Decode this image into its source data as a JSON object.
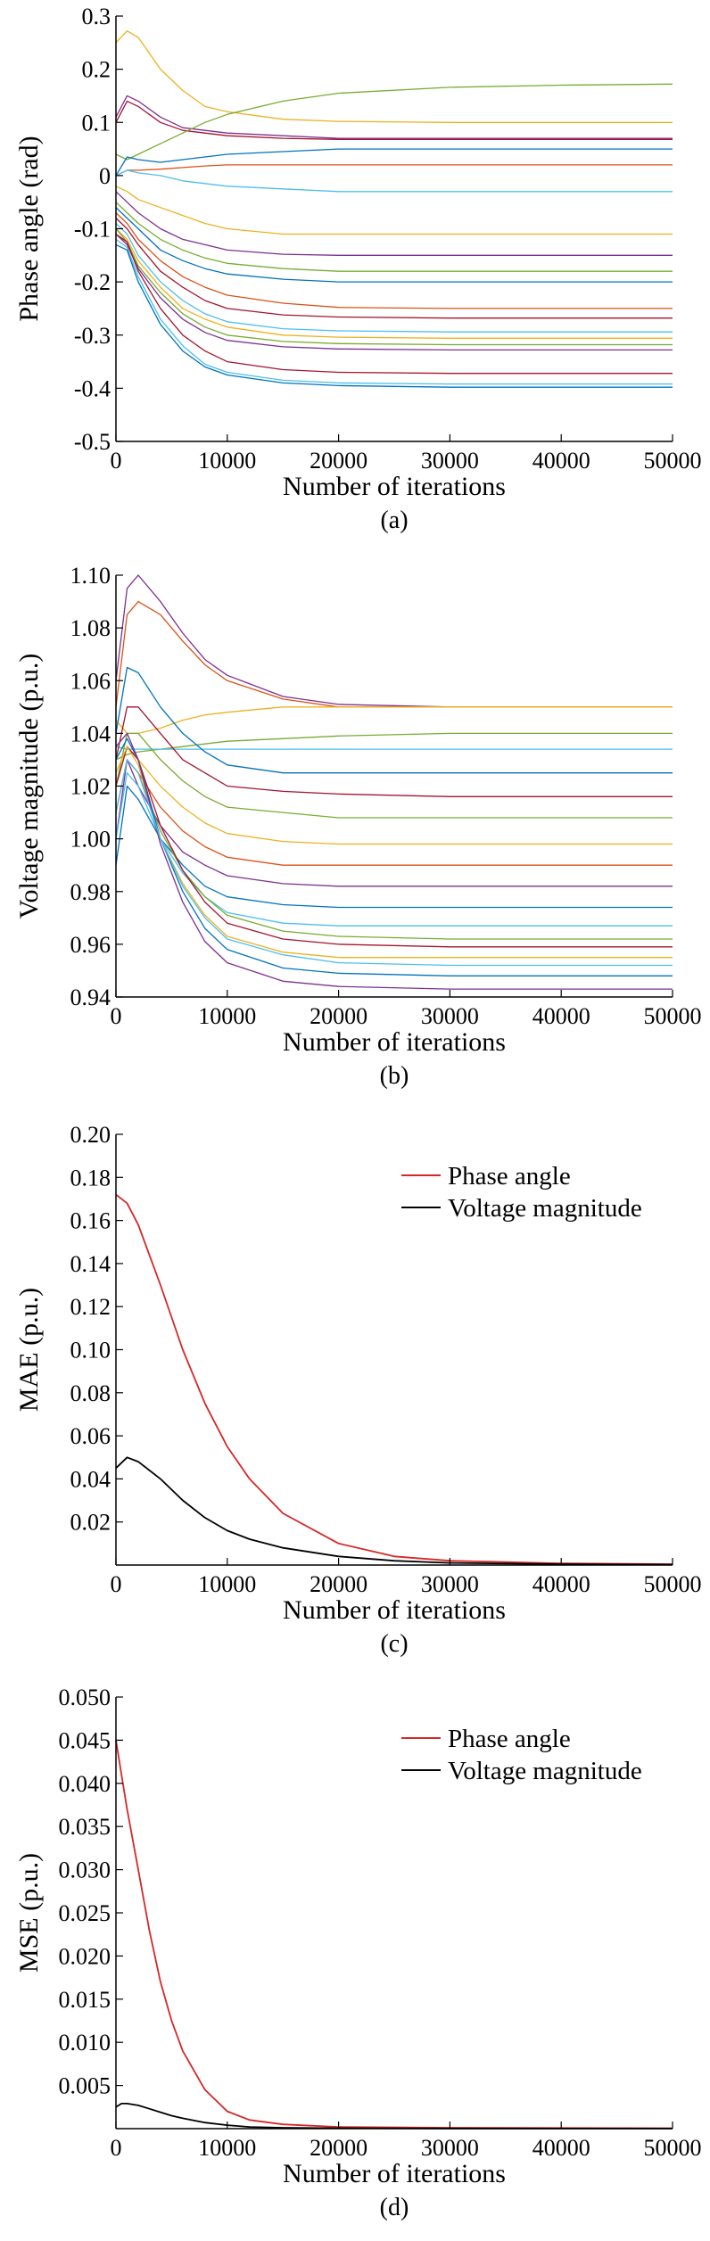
{
  "chart_data": [
    {
      "id": "a",
      "type": "line",
      "caption": "(a)",
      "xlabel": "Number of iterations",
      "ylabel": "Phase angle (rad)",
      "xlim": [
        0,
        50000
      ],
      "ylim": [
        -0.5,
        0.3
      ],
      "xticks": [
        0,
        10000,
        20000,
        30000,
        40000,
        50000
      ],
      "xtick_labels": [
        "0",
        "10000",
        "20000",
        "30000",
        "40000",
        "50000"
      ],
      "yticks": [
        -0.5,
        -0.4,
        -0.3,
        -0.2,
        -0.1,
        0,
        0.1,
        0.2,
        0.3
      ],
      "ytick_labels": [
        "-0.5",
        "-0.4",
        "-0.3",
        "-0.2",
        "-0.1",
        "0",
        "0.1",
        "0.2",
        "0.3"
      ],
      "grid": false,
      "x": [
        0,
        1000,
        2000,
        4000,
        6000,
        8000,
        10000,
        15000,
        20000,
        30000,
        40000,
        50000
      ],
      "series": [
        {
          "color": "#EDB120",
          "values": [
            0.25,
            0.272,
            0.26,
            0.2,
            0.16,
            0.13,
            0.12,
            0.106,
            0.102,
            0.1,
            0.1,
            0.1
          ]
        },
        {
          "color": "#7E2F8E",
          "values": [
            0.11,
            0.15,
            0.14,
            0.11,
            0.09,
            0.085,
            0.08,
            0.075,
            0.07,
            0.07,
            0.07,
            0.07
          ]
        },
        {
          "color": "#A2142F",
          "values": [
            0.1,
            0.14,
            0.13,
            0.1,
            0.085,
            0.08,
            0.075,
            0.07,
            0.068,
            0.068,
            0.068,
            0.068
          ]
        },
        {
          "color": "#77AC30",
          "values": [
            0.04,
            0.03,
            0.04,
            0.06,
            0.08,
            0.1,
            0.115,
            0.14,
            0.155,
            0.166,
            0.17,
            0.172
          ]
        },
        {
          "color": "#0072BD",
          "values": [
            0.0,
            0.035,
            0.03,
            0.025,
            0.03,
            0.035,
            0.04,
            0.045,
            0.05,
            0.05,
            0.05,
            0.05
          ]
        },
        {
          "color": "#D95319",
          "values": [
            0.0,
            0.01,
            0.01,
            0.012,
            0.015,
            0.018,
            0.02,
            0.02,
            0.02,
            0.02,
            0.02,
            0.02
          ]
        },
        {
          "color": "#4DBEEE",
          "values": [
            0.0,
            0.01,
            0.005,
            0.0,
            -0.01,
            -0.015,
            -0.02,
            -0.025,
            -0.03,
            -0.03,
            -0.03,
            -0.03
          ]
        },
        {
          "color": "#EDB120",
          "values": [
            -0.02,
            -0.03,
            -0.045,
            -0.06,
            -0.075,
            -0.09,
            -0.1,
            -0.11,
            -0.11,
            -0.11,
            -0.11,
            -0.11
          ]
        },
        {
          "color": "#7E2F8E",
          "values": [
            -0.03,
            -0.05,
            -0.07,
            -0.1,
            -0.12,
            -0.13,
            -0.14,
            -0.148,
            -0.15,
            -0.15,
            -0.15,
            -0.15
          ]
        },
        {
          "color": "#77AC30",
          "values": [
            -0.05,
            -0.07,
            -0.09,
            -0.12,
            -0.14,
            -0.155,
            -0.165,
            -0.175,
            -0.18,
            -0.18,
            -0.18,
            -0.18
          ]
        },
        {
          "color": "#0072BD",
          "values": [
            -0.06,
            -0.08,
            -0.1,
            -0.14,
            -0.16,
            -0.175,
            -0.185,
            -0.195,
            -0.2,
            -0.2,
            -0.2,
            -0.2
          ]
        },
        {
          "color": "#D95319",
          "values": [
            -0.07,
            -0.09,
            -0.12,
            -0.16,
            -0.19,
            -0.21,
            -0.225,
            -0.24,
            -0.248,
            -0.25,
            -0.25,
            -0.25
          ]
        },
        {
          "color": "#A2142F",
          "values": [
            -0.08,
            -0.1,
            -0.13,
            -0.18,
            -0.21,
            -0.235,
            -0.25,
            -0.262,
            -0.266,
            -0.268,
            -0.268,
            -0.268
          ]
        },
        {
          "color": "#4DBEEE",
          "values": [
            -0.09,
            -0.11,
            -0.15,
            -0.2,
            -0.235,
            -0.26,
            -0.275,
            -0.288,
            -0.292,
            -0.294,
            -0.294,
            -0.294
          ]
        },
        {
          "color": "#EDB120",
          "values": [
            -0.1,
            -0.12,
            -0.16,
            -0.21,
            -0.25,
            -0.27,
            -0.285,
            -0.3,
            -0.304,
            -0.306,
            -0.306,
            -0.306
          ]
        },
        {
          "color": "#77AC30",
          "values": [
            -0.1,
            -0.125,
            -0.17,
            -0.22,
            -0.26,
            -0.285,
            -0.3,
            -0.312,
            -0.316,
            -0.318,
            -0.318,
            -0.318
          ]
        },
        {
          "color": "#7E2F8E",
          "values": [
            -0.11,
            -0.13,
            -0.175,
            -0.23,
            -0.27,
            -0.295,
            -0.31,
            -0.322,
            -0.326,
            -0.328,
            -0.328,
            -0.328
          ]
        },
        {
          "color": "#A2142F",
          "values": [
            -0.11,
            -0.125,
            -0.18,
            -0.25,
            -0.3,
            -0.33,
            -0.35,
            -0.365,
            -0.37,
            -0.372,
            -0.372,
            -0.372
          ]
        },
        {
          "color": "#4DBEEE",
          "values": [
            -0.12,
            -0.135,
            -0.19,
            -0.27,
            -0.32,
            -0.355,
            -0.37,
            -0.385,
            -0.39,
            -0.392,
            -0.392,
            -0.392
          ]
        },
        {
          "color": "#0072BD",
          "values": [
            -0.13,
            -0.14,
            -0.2,
            -0.28,
            -0.33,
            -0.36,
            -0.375,
            -0.39,
            -0.395,
            -0.398,
            -0.398,
            -0.398
          ]
        }
      ]
    },
    {
      "id": "b",
      "type": "line",
      "caption": "(b)",
      "xlabel": "Number of iterations",
      "ylabel": "Voltage magnitude (p.u.)",
      "xlim": [
        0,
        50000
      ],
      "ylim": [
        0.94,
        1.1
      ],
      "xticks": [
        0,
        10000,
        20000,
        30000,
        40000,
        50000
      ],
      "xtick_labels": [
        "0",
        "10000",
        "20000",
        "30000",
        "40000",
        "50000"
      ],
      "yticks": [
        0.94,
        0.96,
        0.98,
        1.0,
        1.02,
        1.04,
        1.06,
        1.08,
        1.1
      ],
      "ytick_labels": [
        "0.94",
        "0.96",
        "0.98",
        "1.00",
        "1.02",
        "1.04",
        "1.06",
        "1.08",
        "1.10"
      ],
      "grid": false,
      "x": [
        0,
        1000,
        2000,
        4000,
        6000,
        8000,
        10000,
        15000,
        20000,
        30000,
        40000,
        50000
      ],
      "series": [
        {
          "color": "#7E2F8E",
          "values": [
            1.06,
            1.095,
            1.1,
            1.09,
            1.078,
            1.068,
            1.062,
            1.054,
            1.051,
            1.05,
            1.05,
            1.05
          ]
        },
        {
          "color": "#D95319",
          "values": [
            1.05,
            1.085,
            1.09,
            1.085,
            1.075,
            1.066,
            1.06,
            1.053,
            1.05,
            1.05,
            1.05,
            1.05
          ]
        },
        {
          "color": "#EDB120",
          "values": [
            1.045,
            1.04,
            1.04,
            1.042,
            1.045,
            1.047,
            1.048,
            1.05,
            1.05,
            1.05,
            1.05,
            1.05
          ]
        },
        {
          "color": "#77AC30",
          "values": [
            1.03,
            1.032,
            1.033,
            1.034,
            1.035,
            1.036,
            1.037,
            1.038,
            1.039,
            1.04,
            1.04,
            1.04
          ]
        },
        {
          "color": "#4DBEEE",
          "values": [
            1.035,
            1.034,
            1.034,
            1.034,
            1.034,
            1.034,
            1.034,
            1.034,
            1.034,
            1.034,
            1.034,
            1.034
          ]
        },
        {
          "color": "#0072BD",
          "values": [
            1.04,
            1.065,
            1.063,
            1.05,
            1.04,
            1.033,
            1.028,
            1.025,
            1.025,
            1.025,
            1.025,
            1.025
          ]
        },
        {
          "color": "#A2142F",
          "values": [
            1.03,
            1.05,
            1.05,
            1.04,
            1.03,
            1.025,
            1.02,
            1.018,
            1.017,
            1.016,
            1.016,
            1.016
          ]
        },
        {
          "color": "#77AC30",
          "values": [
            1.02,
            1.04,
            1.04,
            1.03,
            1.022,
            1.016,
            1.012,
            1.01,
            1.008,
            1.008,
            1.008,
            1.008
          ]
        },
        {
          "color": "#EDB120",
          "values": [
            1.02,
            1.035,
            1.03,
            1.02,
            1.012,
            1.006,
            1.002,
            0.999,
            0.998,
            0.998,
            0.998,
            0.998
          ]
        },
        {
          "color": "#D95319",
          "values": [
            1.01,
            1.03,
            1.025,
            1.012,
            1.003,
            0.997,
            0.993,
            0.99,
            0.99,
            0.99,
            0.99,
            0.99
          ]
        },
        {
          "color": "#7E2F8E",
          "values": [
            1.0,
            1.03,
            1.02,
            1.005,
            0.995,
            0.99,
            0.986,
            0.983,
            0.982,
            0.982,
            0.982,
            0.982
          ]
        },
        {
          "color": "#0072BD",
          "values": [
            0.99,
            1.02,
            1.015,
            1.0,
            0.99,
            0.982,
            0.978,
            0.975,
            0.974,
            0.974,
            0.974,
            0.974
          ]
        },
        {
          "color": "#4DBEEE",
          "values": [
            1.0,
            1.025,
            1.02,
            1.0,
            0.987,
            0.978,
            0.972,
            0.968,
            0.967,
            0.967,
            0.967,
            0.967
          ]
        },
        {
          "color": "#77AC30",
          "values": [
            1.01,
            1.03,
            1.025,
            1.003,
            0.988,
            0.978,
            0.971,
            0.965,
            0.963,
            0.962,
            0.962,
            0.962
          ]
        },
        {
          "color": "#A2142F",
          "values": [
            1.02,
            1.035,
            1.03,
            1.005,
            0.988,
            0.976,
            0.968,
            0.962,
            0.96,
            0.959,
            0.959,
            0.959
          ]
        },
        {
          "color": "#EDB120",
          "values": [
            1.025,
            1.035,
            1.028,
            1.0,
            0.983,
            0.971,
            0.963,
            0.957,
            0.955,
            0.955,
            0.955,
            0.955
          ]
        },
        {
          "color": "#0072BD",
          "values": [
            1.03,
            1.038,
            1.03,
            1.0,
            0.98,
            0.966,
            0.958,
            0.951,
            0.949,
            0.948,
            0.948,
            0.948
          ]
        },
        {
          "color": "#7E2F8E",
          "values": [
            1.035,
            1.04,
            1.03,
            0.998,
            0.976,
            0.961,
            0.953,
            0.946,
            0.944,
            0.943,
            0.943,
            0.943
          ]
        },
        {
          "color": "#4DBEEE",
          "values": [
            1.01,
            1.03,
            1.025,
            1.0,
            0.982,
            0.97,
            0.962,
            0.956,
            0.953,
            0.952,
            0.952,
            0.952
          ]
        }
      ]
    },
    {
      "id": "c",
      "type": "line",
      "caption": "(c)",
      "xlabel": "Number of iterations",
      "ylabel": "MAE (p.u.)",
      "xlim": [
        0,
        50000
      ],
      "ylim": [
        0,
        0.2
      ],
      "xticks": [
        0,
        10000,
        20000,
        30000,
        40000,
        50000
      ],
      "xtick_labels": [
        "0",
        "10000",
        "20000",
        "30000",
        "40000",
        "50000"
      ],
      "yticks": [
        0.02,
        0.04,
        0.06,
        0.08,
        0.1,
        0.12,
        0.14,
        0.16,
        0.18,
        0.2
      ],
      "ytick_labels": [
        "0.02",
        "0.04",
        "0.06",
        "0.08",
        "0.10",
        "0.12",
        "0.14",
        "0.16",
        "0.18",
        "0.20"
      ],
      "grid": false,
      "legend_position": "top-right",
      "x": [
        0,
        1000,
        2000,
        4000,
        6000,
        8000,
        10000,
        12000,
        15000,
        20000,
        25000,
        30000,
        40000,
        50000
      ],
      "series": [
        {
          "name": "Phase angle",
          "color": "#D62728",
          "values": [
            0.172,
            0.168,
            0.158,
            0.13,
            0.1,
            0.075,
            0.055,
            0.04,
            0.024,
            0.01,
            0.004,
            0.002,
            0.0008,
            0.0004
          ]
        },
        {
          "name": "Voltage magnitude",
          "color": "#000000",
          "values": [
            0.045,
            0.05,
            0.048,
            0.04,
            0.03,
            0.022,
            0.016,
            0.012,
            0.008,
            0.004,
            0.002,
            0.001,
            0.0004,
            0.0002
          ]
        }
      ]
    },
    {
      "id": "d",
      "type": "line",
      "caption": "(d)",
      "xlabel": "Number of iterations",
      "ylabel": "MSE (p.u.)",
      "xlim": [
        0,
        50000
      ],
      "ylim": [
        0,
        0.05
      ],
      "xticks": [
        0,
        10000,
        20000,
        30000,
        40000,
        50000
      ],
      "xtick_labels": [
        "0",
        "10000",
        "20000",
        "30000",
        "40000",
        "50000"
      ],
      "yticks": [
        0.005,
        0.01,
        0.015,
        0.02,
        0.025,
        0.03,
        0.035,
        0.04,
        0.045,
        0.05
      ],
      "ytick_labels": [
        "0.005",
        "0.010",
        "0.015",
        "0.020",
        "0.025",
        "0.030",
        "0.035",
        "0.040",
        "0.045",
        "0.050"
      ],
      "grid": false,
      "legend_position": "top-right",
      "x": [
        0,
        500,
        1000,
        2000,
        3000,
        4000,
        5000,
        6000,
        8000,
        10000,
        12000,
        15000,
        20000,
        30000,
        50000
      ],
      "series": [
        {
          "name": "Phase angle",
          "color": "#D62728",
          "values": [
            0.045,
            0.041,
            0.037,
            0.03,
            0.023,
            0.017,
            0.0125,
            0.009,
            0.0045,
            0.002,
            0.001,
            0.0005,
            0.0002,
            0.0001,
            5e-05
          ]
        },
        {
          "name": "Voltage magnitude",
          "color": "#000000",
          "values": [
            0.0025,
            0.0029,
            0.0029,
            0.0027,
            0.0023,
            0.0019,
            0.0015,
            0.0012,
            0.0007,
            0.0004,
            0.0002,
            0.0001,
            5e-05,
            2e-05,
            1e-05
          ]
        }
      ]
    }
  ]
}
